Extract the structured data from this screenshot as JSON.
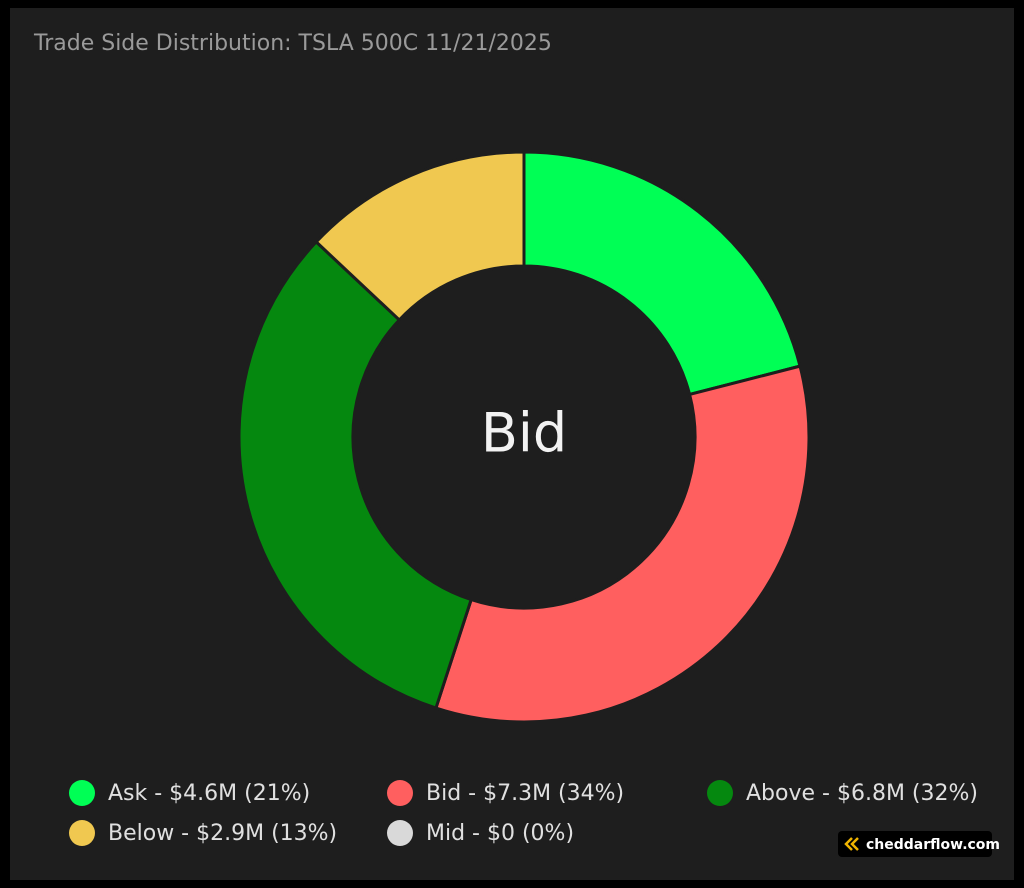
{
  "chart_data": {
    "type": "donut",
    "title": "Trade Side Distribution: TSLA 500C 11/21/2025",
    "center_label": "Bid",
    "categories": [
      "Ask - $4.6M (21%)",
      "Bid - $7.3M (34%)",
      "Above - $6.8M (32%)",
      "Below - $2.9M (13%)",
      "Mid - $0 (0%)"
    ],
    "values": [
      21,
      34,
      32,
      13,
      0
    ],
    "colors": [
      "#00ff55",
      "#ff5f5f",
      "#05880f",
      "#f0c850",
      "#d9d9d9"
    ],
    "watermark": "cheddarflow.com"
  }
}
